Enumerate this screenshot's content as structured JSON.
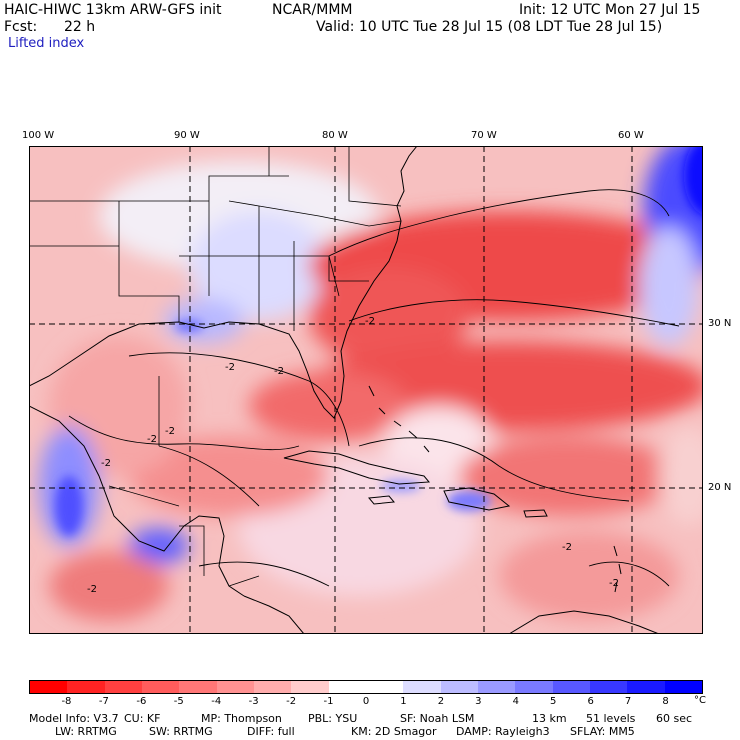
{
  "header": {
    "model_title": "HAIC-HIWC 13km ARW-GFS init",
    "org": "NCAR/MMM",
    "init": "Init: 12 UTC Mon 27 Jul 15",
    "fcst_label": "Fcst:",
    "fcst_value": "22 h",
    "valid": "Valid: 10 UTC Tue 28 Jul 15 (08 LDT Tue 28 Jul 15)",
    "field": "Lifted index"
  },
  "map": {
    "lon_labels": [
      "100 W",
      "90 W",
      "80 W",
      "70 W",
      "60 W"
    ],
    "lat_labels": [
      "30 N",
      "20 N"
    ],
    "contour_labels": [
      "-2",
      "-2",
      "-2",
      "-2",
      "-2",
      "-2",
      "-2",
      "-2",
      "-2"
    ],
    "colors": {
      "strong_red": "#ec3b3b",
      "mid_red": "#f48e8e",
      "light_red": "#f9c6c6",
      "white": "#ffffff",
      "light_blue": "#d6d6ff",
      "mid_blue": "#9f9fff",
      "strong_blue": "#3838ff"
    }
  },
  "colorbar": {
    "colors": [
      "#ff0000",
      "#ff2323",
      "#ff4040",
      "#ff5c5c",
      "#ff7777",
      "#ff9292",
      "#ffadad",
      "#ffcccc",
      "#ffffff",
      "#ffffff",
      "#ddddff",
      "#bcbcff",
      "#9a9aff",
      "#7a7aff",
      "#5858ff",
      "#3838ff",
      "#1a1aff",
      "#0000ff"
    ],
    "tick_labels": [
      "-8",
      "-7",
      "-6",
      "-5",
      "-4",
      "-3",
      "-2",
      "-1",
      "0",
      "1",
      "2",
      "3",
      "4",
      "5",
      "6",
      "7",
      "8"
    ],
    "unit": "°C"
  },
  "model_info": {
    "line1": [
      "Model Info: V3.7",
      "CU: KF",
      "MP: Thompson",
      "PBL: YSU",
      "SF: Noah LSM",
      "13 km",
      "51 levels",
      "60 sec"
    ],
    "line2": [
      "LW: RRTMG",
      "SW: RRTMG",
      "DIFF: full",
      "KM: 2D Smagor",
      "DAMP: Rayleigh3",
      "SFLAY: MM5"
    ]
  }
}
